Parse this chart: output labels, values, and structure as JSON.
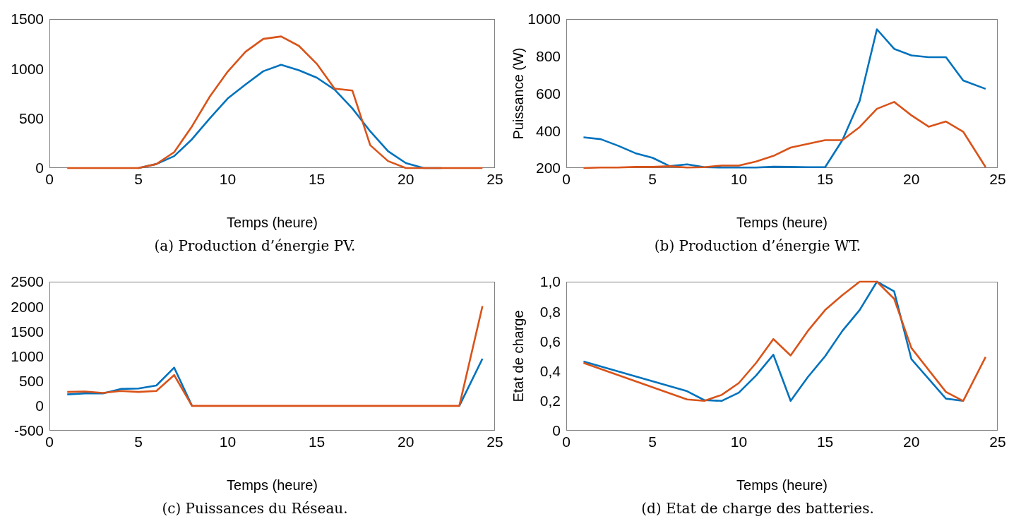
{
  "chart_data": [
    {
      "type": "line",
      "title": "(a) Production d’énergie PV.",
      "xlabel": "Temps (heure)",
      "x": [
        1,
        2,
        3,
        4,
        5,
        6,
        7,
        8,
        9,
        10,
        11,
        12,
        13,
        14,
        15,
        16,
        17,
        18,
        19,
        20,
        21,
        22,
        23,
        24.3
      ],
      "xlim": [
        0,
        25
      ],
      "xticks": [
        0,
        5,
        10,
        15,
        20,
        25
      ],
      "ylim": [
        0,
        1500
      ],
      "yticks": [
        0,
        500,
        1000,
        1500
      ],
      "grid": false,
      "legend": false,
      "marker": "none",
      "line_style": "solid",
      "series": [
        {
          "color": "#0072bd",
          "values": [
            null,
            null,
            null,
            null,
            0,
            40,
            120,
            290,
            500,
            700,
            840,
            975,
            1040,
            985,
            910,
            790,
            600,
            370,
            170,
            50,
            0,
            0,
            null,
            null
          ]
        },
        {
          "color": "#d95319",
          "values": [
            0,
            0,
            0,
            0,
            0,
            40,
            160,
            420,
            720,
            970,
            1170,
            1300,
            1325,
            1230,
            1050,
            800,
            780,
            230,
            70,
            0,
            0,
            0,
            0,
            0
          ]
        }
      ]
    },
    {
      "type": "line",
      "title": "(b) Production d’énergie WT.",
      "xlabel": "Temps (heure)",
      "ylabel": "Puissance (W)",
      "x": [
        1,
        2,
        3,
        4,
        5,
        6,
        7,
        8,
        9,
        10,
        11,
        12,
        13,
        14,
        15,
        16,
        17,
        18,
        19,
        20,
        21,
        22,
        23,
        24.3
      ],
      "xlim": [
        0,
        25
      ],
      "xticks": [
        0,
        5,
        10,
        15,
        20,
        25
      ],
      "ylim": [
        200,
        1000
      ],
      "yticks": [
        200,
        400,
        600,
        800,
        1000
      ],
      "grid": false,
      "legend": false,
      "marker": "none",
      "line_style": "solid",
      "series": [
        {
          "color": "#0072bd",
          "values": [
            365,
            355,
            320,
            280,
            255,
            210,
            220,
            205,
            203,
            203,
            203,
            207,
            206,
            205,
            205,
            350,
            560,
            945,
            840,
            805,
            795,
            795,
            670,
            625
          ]
        },
        {
          "color": "#d95319",
          "values": [
            200,
            203,
            203,
            206,
            206,
            210,
            203,
            205,
            213,
            213,
            235,
            265,
            310,
            330,
            350,
            350,
            420,
            518,
            555,
            483,
            422,
            450,
            395,
            205
          ]
        }
      ]
    },
    {
      "type": "line",
      "title": "(c) Puissances du Réseau.",
      "xlabel": "Temps (heure)",
      "x": [
        1,
        2,
        3,
        4,
        5,
        6,
        7,
        8,
        9,
        10,
        11,
        12,
        13,
        14,
        15,
        16,
        17,
        18,
        19,
        20,
        21,
        22,
        23,
        24.3
      ],
      "xlim": [
        0,
        25
      ],
      "xticks": [
        0,
        5,
        10,
        15,
        20,
        25
      ],
      "ylim": [
        -500,
        2500
      ],
      "yticks": [
        -500,
        0,
        500,
        1000,
        1500,
        2000,
        2500
      ],
      "grid": false,
      "legend": false,
      "marker": "none",
      "line_style": "solid",
      "series": [
        {
          "color": "#0072bd",
          "values": [
            230,
            250,
            250,
            340,
            350,
            410,
            770,
            0,
            null,
            null,
            null,
            null,
            null,
            null,
            null,
            null,
            null,
            null,
            null,
            null,
            null,
            null,
            0,
            950
          ]
        },
        {
          "color": "#d95319",
          "values": [
            280,
            290,
            260,
            300,
            280,
            300,
            620,
            0,
            0,
            0,
            0,
            0,
            0,
            0,
            0,
            0,
            0,
            0,
            0,
            0,
            0,
            0,
            0,
            2010
          ]
        }
      ]
    },
    {
      "type": "line",
      "title": "(d) Etat de charge des batteries.",
      "xlabel": "Temps (heure)",
      "ylabel": "Etat de charge",
      "xlim": [
        0,
        25
      ],
      "xticks": [
        0,
        5,
        10,
        15,
        20,
        25
      ],
      "ylim": [
        0,
        1
      ],
      "yticks": [
        0,
        {
          "value": 0.2,
          "label": "0,2"
        },
        {
          "value": 0.4,
          "label": "0,4"
        },
        {
          "value": 0.6,
          "label": "0,6"
        },
        {
          "value": 0.8,
          "label": "0,8"
        },
        {
          "value": 1,
          "label": "1,0"
        }
      ],
      "grid": false,
      "legend": false,
      "marker": "none",
      "line_style": "solid",
      "series": [
        {
          "color": "#0072bd",
          "x": [
            1,
            7,
            8,
            9,
            10,
            11,
            12,
            13,
            14,
            15,
            16,
            17,
            18,
            19,
            20,
            22,
            23
          ],
          "values": [
            0.465,
            0.265,
            0.205,
            0.2,
            0.255,
            0.37,
            0.51,
            0.2,
            0.36,
            0.5,
            0.67,
            0.81,
            1,
            0.935,
            0.48,
            0.215,
            0.2
          ]
        },
        {
          "color": "#d95319",
          "x": [
            1,
            7,
            8,
            9,
            10,
            11,
            12,
            13,
            14,
            15,
            16,
            17,
            18,
            19,
            20,
            22,
            23,
            24.3
          ],
          "values": [
            0.455,
            0.21,
            0.2,
            0.24,
            0.32,
            0.455,
            0.615,
            0.505,
            0.67,
            0.81,
            0.91,
            1,
            1,
            0.885,
            0.555,
            0.26,
            0.2,
            0.495
          ]
        }
      ]
    }
  ]
}
